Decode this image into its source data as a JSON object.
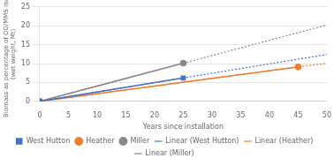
{
  "chart_data": {
    "type": "line",
    "xlabel": "Years since installation",
    "ylabel": "Biomass as percentage of OG/MMS mass\n(wet weight, Mt)",
    "xlim": [
      0,
      50
    ],
    "ylim": [
      0,
      25
    ],
    "xticks": [
      0,
      5,
      10,
      15,
      20,
      25,
      30,
      35,
      40,
      45,
      50
    ],
    "yticks": [
      0,
      5,
      10,
      15,
      20,
      25
    ],
    "grid": "y",
    "legend": "bottom",
    "series": [
      {
        "name": "West Hutton",
        "color": "#4472C4",
        "x": [
          0,
          25
        ],
        "values": [
          0,
          6.2
        ],
        "marker": "square",
        "line_style": "solid"
      },
      {
        "name": "Heather",
        "color": "#ED7D31",
        "x": [
          0,
          45
        ],
        "values": [
          0,
          9.1
        ],
        "marker": "circle",
        "line_style": "solid"
      },
      {
        "name": "Miller",
        "color": "#888888",
        "x": [
          0,
          25
        ],
        "values": [
          0,
          10.1
        ],
        "marker": "circle",
        "line_style": "solid"
      },
      {
        "name": "Linear (West Hutton)",
        "color": "#4472C4",
        "x": [
          0,
          50
        ],
        "values": [
          0,
          12.4
        ],
        "marker": "none",
        "line_style": "dotted"
      },
      {
        "name": "Linear (Heather)",
        "color": "#ED7D31",
        "x": [
          0,
          50
        ],
        "values": [
          0,
          10.11
        ],
        "marker": "none",
        "line_style": "dotted"
      },
      {
        "name": "Linear (Miller)",
        "color": "#888888",
        "x": [
          0,
          50
        ],
        "values": [
          0,
          20.2
        ],
        "marker": "none",
        "line_style": "dotted"
      }
    ]
  }
}
